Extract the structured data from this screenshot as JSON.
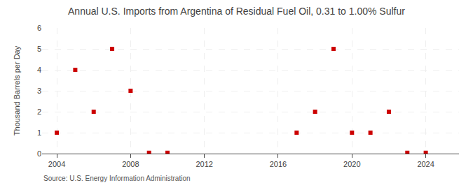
{
  "chart_data": {
    "type": "scatter",
    "title": "Annual U.S. Imports from Argentina of Residual Fuel Oil, 0.31 to 1.00% Sulfur",
    "ylabel": "Thousand Barrels per Day",
    "source": "Source: U.S. Energy Information Administration",
    "x": [
      2004,
      2005,
      2006,
      2007,
      2008,
      2009,
      2010,
      2017,
      2018,
      2019,
      2020,
      2021,
      2022,
      2023,
      2024
    ],
    "values": [
      1,
      4,
      2,
      5,
      3,
      0.04,
      0.04,
      1,
      2,
      5,
      1,
      1,
      2,
      0.04,
      0.04
    ],
    "color": "#cc0000",
    "marker": "square",
    "xlim": [
      2003.2,
      2025.8
    ],
    "ylim": [
      0,
      6
    ],
    "xticks": [
      2004,
      2008,
      2012,
      2016,
      2020,
      2024
    ],
    "yticks": [
      0,
      1,
      2,
      3,
      4,
      5,
      6
    ],
    "grid": true
  }
}
